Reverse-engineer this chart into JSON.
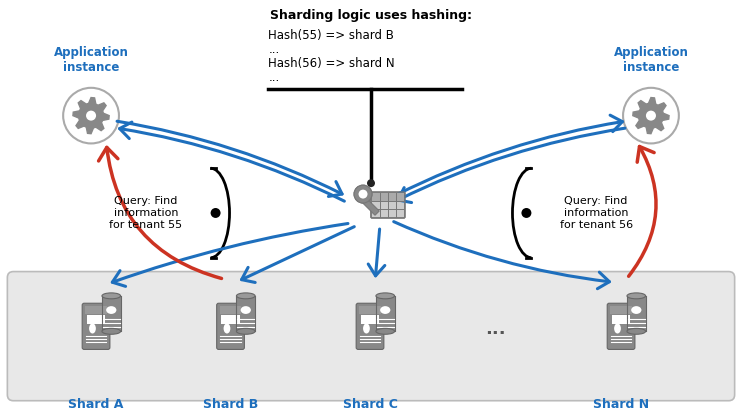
{
  "title": "Sharding logic uses hashing:",
  "bg_color": "#ffffff",
  "shard_box_color": "#e8e8e8",
  "shard_box_edge": "#bbbbbb",
  "app_label_color": "#1e6fbd",
  "shard_label_color": "#1e6fbd",
  "arrow_blue": "#1e6fbd",
  "arrow_red": "#cc3322",
  "text_color": "#000000",
  "hash_line1": "Hash(55) => shard B",
  "hash_line2": "...",
  "hash_line3": "Hash(56) => shard N",
  "hash_line4": "...",
  "query_left": "Query: Find\ninformation\nfor tenant 55",
  "query_right": "Query: Find\ninformation\nfor tenant 56",
  "app_left_label": "Application\ninstance",
  "app_right_label": "Application\ninstance",
  "shards": [
    "Shard A",
    "Shard B",
    "Shard C",
    "Shard N"
  ],
  "dots": "...",
  "icon_color": "#888888",
  "icon_edge": "#666666"
}
